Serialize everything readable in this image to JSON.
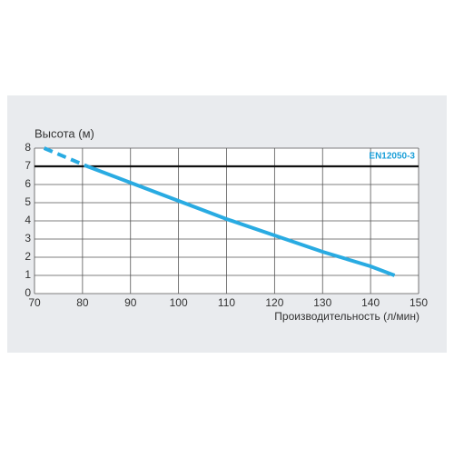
{
  "chart_data": {
    "type": "line",
    "y_label": "Высота (м)",
    "x_label": "Производительность (л/мин)",
    "xlim": [
      70,
      150
    ],
    "xticks": [
      70,
      80,
      90,
      100,
      110,
      120,
      130,
      140,
      150
    ],
    "ylim": [
      0,
      8
    ],
    "yticks": [
      0,
      1,
      2,
      3,
      4,
      5,
      6,
      7,
      8
    ],
    "grid": true,
    "reference_line": {
      "value": 7,
      "color": "#111111",
      "label": "EN12050-3",
      "label_color": "#1a9fd8"
    },
    "series": [
      {
        "color": "#29abe2",
        "dashed": true,
        "x": [
          72,
          81
        ],
        "values": [
          8,
          7
        ]
      },
      {
        "color": "#29abe2",
        "dashed": false,
        "x": [
          81,
          90,
          100,
          110,
          120,
          130,
          140,
          145
        ],
        "values": [
          7,
          6.1,
          5.1,
          4.1,
          3.2,
          2.3,
          1.5,
          1.0
        ]
      }
    ]
  }
}
